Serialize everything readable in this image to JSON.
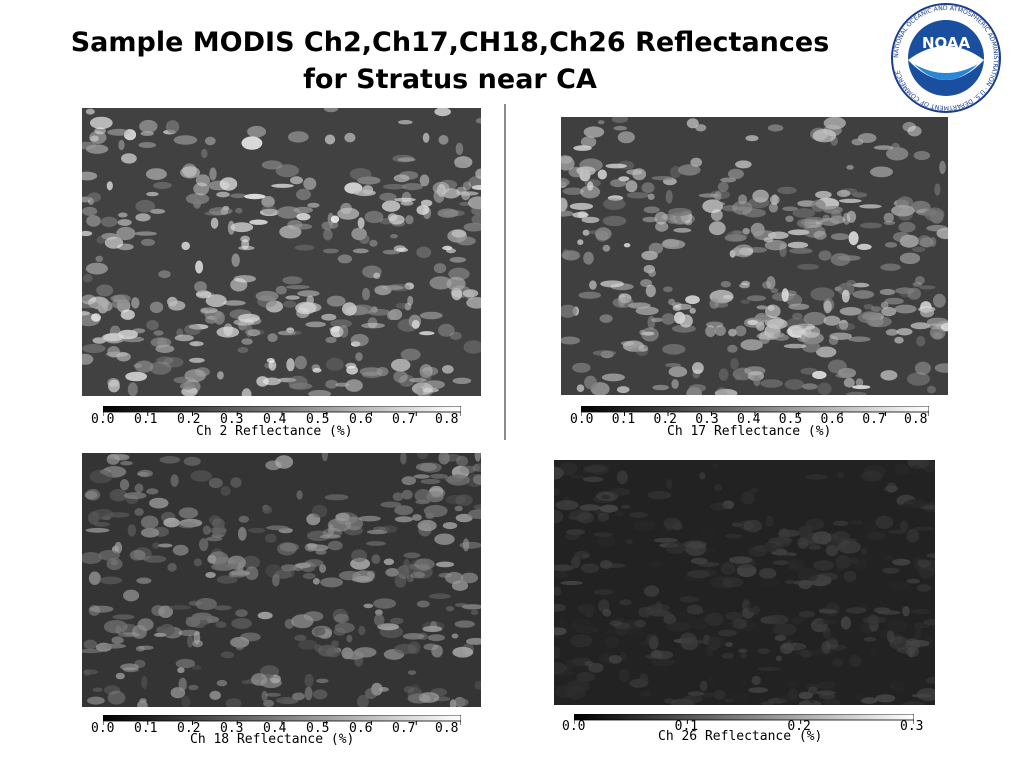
{
  "title": {
    "line1": "Sample MODIS Ch2,Ch17,CH18,Ch26 Reflectances",
    "line2": "for  Stratus near CA"
  },
  "logo": {
    "name": "noaa-logo",
    "text": "NOAA",
    "ring_text": "NATIONAL OCEANIC AND ATMOSPHERIC ADMINISTRATION · U.S. DEPARTMENT OF COMMERCE"
  },
  "panels": [
    {
      "id": "ch2",
      "colorbar_title": "Ch 2 Reflectance (%)",
      "ticks": [
        "0.0",
        "0.1",
        "0.2",
        "0.3",
        "0.4",
        "0.5",
        "0.6",
        "0.7",
        "0.8"
      ],
      "brightness": 1.0
    },
    {
      "id": "ch17",
      "colorbar_title": "Ch 17 Reflectance (%)",
      "ticks": [
        "0.0",
        "0.1",
        "0.2",
        "0.3",
        "0.4",
        "0.5",
        "0.6",
        "0.7",
        "0.8"
      ],
      "brightness": 0.95
    },
    {
      "id": "ch18",
      "colorbar_title": "Ch 18 Reflectance (%)",
      "ticks": [
        "0.0",
        "0.1",
        "0.2",
        "0.3",
        "0.4",
        "0.5",
        "0.6",
        "0.7",
        "0.8"
      ],
      "brightness": 0.7
    },
    {
      "id": "ch26",
      "colorbar_title": "Ch 26 Reflectance (%)",
      "ticks": [
        "0.0",
        "0.1",
        "0.2",
        "0.3"
      ],
      "brightness": 0.3
    }
  ]
}
